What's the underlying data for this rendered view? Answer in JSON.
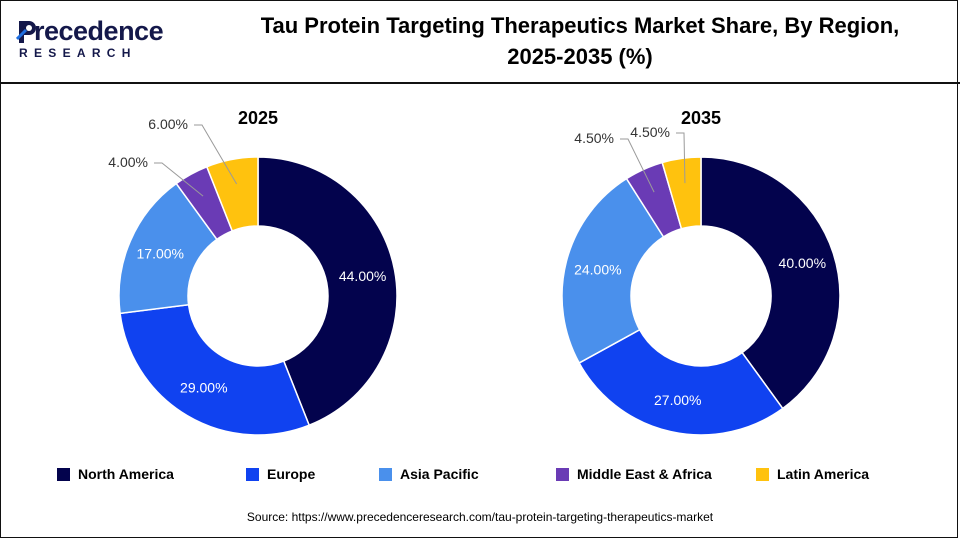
{
  "logo": {
    "main": "recedence",
    "sub": "RESEARCH"
  },
  "title": {
    "line1": "Tau Protein Targeting Therapeutics Market Share, By Region,",
    "line2": "2025-2035 (%)"
  },
  "colors": {
    "north_america": "#03034d",
    "europe": "#1042f0",
    "asia_pacific": "#4a90ec",
    "middle_east_africa": "#6a3bb5",
    "latin_america": "#ffc20e"
  },
  "chart_data": [
    {
      "type": "pie",
      "title": "2025",
      "categories": [
        "North America",
        "Europe",
        "Asia Pacific",
        "Middle East & Africa",
        "Latin America"
      ],
      "values": [
        44,
        29,
        17,
        4,
        6
      ],
      "labels": [
        "44.00%",
        "29.00%",
        "17.00%",
        "4.00%",
        "6.00%"
      ]
    },
    {
      "type": "pie",
      "title": "2035",
      "categories": [
        "North America",
        "Europe",
        "Asia Pacific",
        "Middle East & Africa",
        "Latin America"
      ],
      "values": [
        40,
        27,
        24,
        4.5,
        4.5
      ],
      "labels": [
        "40.00%",
        "27.00%",
        "24.00%",
        "4.50%",
        "4.50%"
      ]
    }
  ],
  "legend": [
    {
      "label": "North America",
      "color": "#03034d"
    },
    {
      "label": "Europe",
      "color": "#1042f0"
    },
    {
      "label": "Asia Pacific",
      "color": "#4a90ec"
    },
    {
      "label": "Middle East & Africa",
      "color": "#6a3bb5"
    },
    {
      "label": "Latin America",
      "color": "#ffc20e"
    }
  ],
  "source": "Source: https://www.precedenceresearch.com/tau-protein-targeting-therapeutics-market"
}
